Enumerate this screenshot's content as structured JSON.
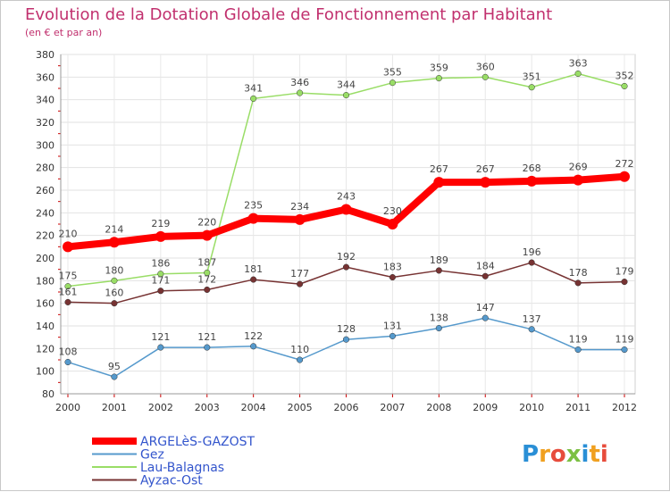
{
  "chart_data": {
    "type": "line",
    "title": "Evolution de la Dotation Globale de Fonctionnement par Habitant",
    "subtitle": "(en € et par an)",
    "xlabel": "",
    "ylabel": "",
    "x": [
      "2000",
      "2001",
      "2002",
      "2003",
      "2004",
      "2005",
      "2006",
      "2007",
      "2008",
      "2009",
      "2010",
      "2011",
      "2012"
    ],
    "ylim": [
      80,
      380
    ],
    "yticks": [
      80,
      100,
      120,
      140,
      160,
      180,
      200,
      220,
      240,
      260,
      280,
      300,
      320,
      340,
      360,
      380
    ],
    "grid": true,
    "legend_position": "bottom-left",
    "series": [
      {
        "name": "ARGELèS-GAZOST",
        "color": "#ff0000",
        "values": [
          210,
          214,
          219,
          220,
          235,
          234,
          243,
          230,
          267,
          267,
          268,
          269,
          272
        ]
      },
      {
        "name": "Gez",
        "color": "#5599cc",
        "values": [
          108,
          95,
          121,
          121,
          122,
          110,
          128,
          131,
          138,
          147,
          137,
          119,
          119
        ]
      },
      {
        "name": "Lau-Balagnas",
        "color": "#99dd66",
        "values": [
          175,
          180,
          186,
          187,
          341,
          346,
          344,
          355,
          359,
          360,
          351,
          363,
          352
        ]
      },
      {
        "name": "Ayzac-Ost",
        "color": "#773333",
        "values": [
          161,
          160,
          171,
          172,
          181,
          177,
          192,
          183,
          189,
          184,
          196,
          178,
          179
        ]
      }
    ]
  },
  "brand": {
    "logo_text": "Proxiti"
  }
}
